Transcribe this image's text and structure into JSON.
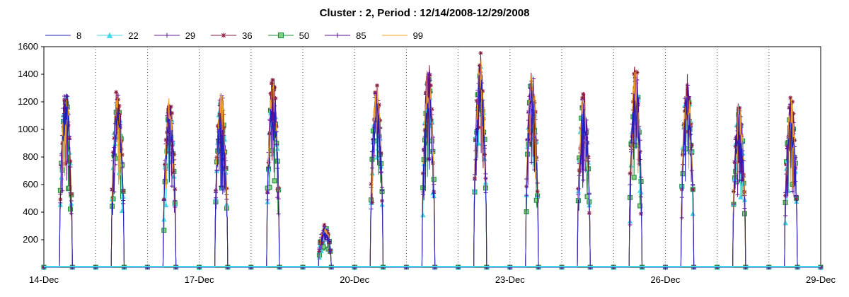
{
  "chart_data": {
    "type": "line",
    "title": "Cluster : 2, Period : 12/14/2008-12/29/2008",
    "xlabel": "",
    "ylabel": "",
    "x_range": [
      "2008-12-14",
      "2008-12-29"
    ],
    "x_ticks": [
      {
        "date": "2008-12-14",
        "label": "14-Dec"
      },
      {
        "date": "2008-12-17",
        "label": "17-Dec"
      },
      {
        "date": "2008-12-20",
        "label": "20-Dec"
      },
      {
        "date": "2008-12-23",
        "label": "23-Dec"
      },
      {
        "date": "2008-12-26",
        "label": "26-Dec"
      },
      {
        "date": "2008-12-29",
        "label": "29-Dec"
      }
    ],
    "ylim": [
      0,
      1600
    ],
    "y_ticks": [
      200,
      400,
      600,
      800,
      1000,
      1200,
      1400,
      1600
    ],
    "grid": "vertical dotted lines at each day boundary",
    "legend_position": "top-left",
    "daily_peaks": [
      {
        "date": "2008-12-14",
        "peak": 1370
      },
      {
        "date": "2008-12-15",
        "peak": 1340
      },
      {
        "date": "2008-12-16",
        "peak": 1290
      },
      {
        "date": "2008-12-17",
        "peak": 1330
      },
      {
        "date": "2008-12-18",
        "peak": 1430
      },
      {
        "date": "2008-12-19",
        "peak": 320
      },
      {
        "date": "2008-12-20",
        "peak": 1370
      },
      {
        "date": "2008-12-21",
        "peak": 1540
      },
      {
        "date": "2008-12-22",
        "peak": 1590
      },
      {
        "date": "2008-12-23",
        "peak": 1520
      },
      {
        "date": "2008-12-24",
        "peak": 1330
      },
      {
        "date": "2008-12-25",
        "peak": 1520
      },
      {
        "date": "2008-12-26",
        "peak": 1440
      },
      {
        "date": "2008-12-27",
        "peak": 1270
      },
      {
        "date": "2008-12-28",
        "peak": 1280
      }
    ],
    "series": [
      {
        "name": "8",
        "color": "#2020c0",
        "marker": "none"
      },
      {
        "name": "22",
        "color": "#3fd6e8",
        "marker": "triangle"
      },
      {
        "name": "29",
        "color": "#6a1b9a",
        "marker": "plus"
      },
      {
        "name": "36",
        "color": "#8b1a3a",
        "marker": "asterisk"
      },
      {
        "name": "50",
        "color": "#1a8a3a",
        "marker": "square",
        "marker_fill": "#7fd07f"
      },
      {
        "name": "85",
        "color": "#5a0a9a",
        "marker": "plus"
      },
      {
        "name": "99",
        "color": "#f0a020",
        "marker": "none"
      }
    ]
  }
}
